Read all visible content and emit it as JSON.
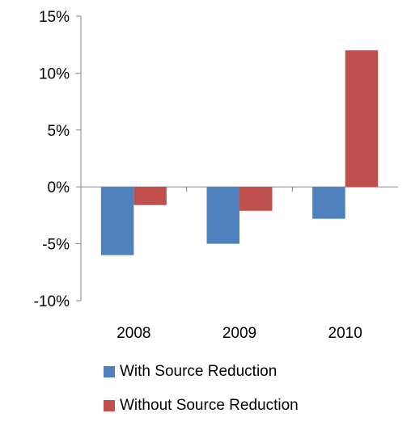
{
  "chart_data": {
    "type": "bar",
    "categories": [
      "2008",
      "2009",
      "2010"
    ],
    "series": [
      {
        "name": "With Source Reduction",
        "values": [
          -6.0,
          -5.0,
          -2.8
        ],
        "color": "#4F81BD"
      },
      {
        "name": "Without Source Reduction",
        "values": [
          -1.6,
          -2.1,
          12.0
        ],
        "color": "#C0504D"
      }
    ],
    "yticks": [
      "15%",
      "10%",
      "5%",
      "0%",
      "-5%",
      "-10%"
    ],
    "ylim": [
      -10,
      15
    ],
    "ytick_values": [
      15,
      10,
      5,
      0,
      -5,
      -10
    ],
    "title": "",
    "xlabel": "",
    "ylabel": "",
    "grid": false,
    "legend_position": "bottom"
  }
}
